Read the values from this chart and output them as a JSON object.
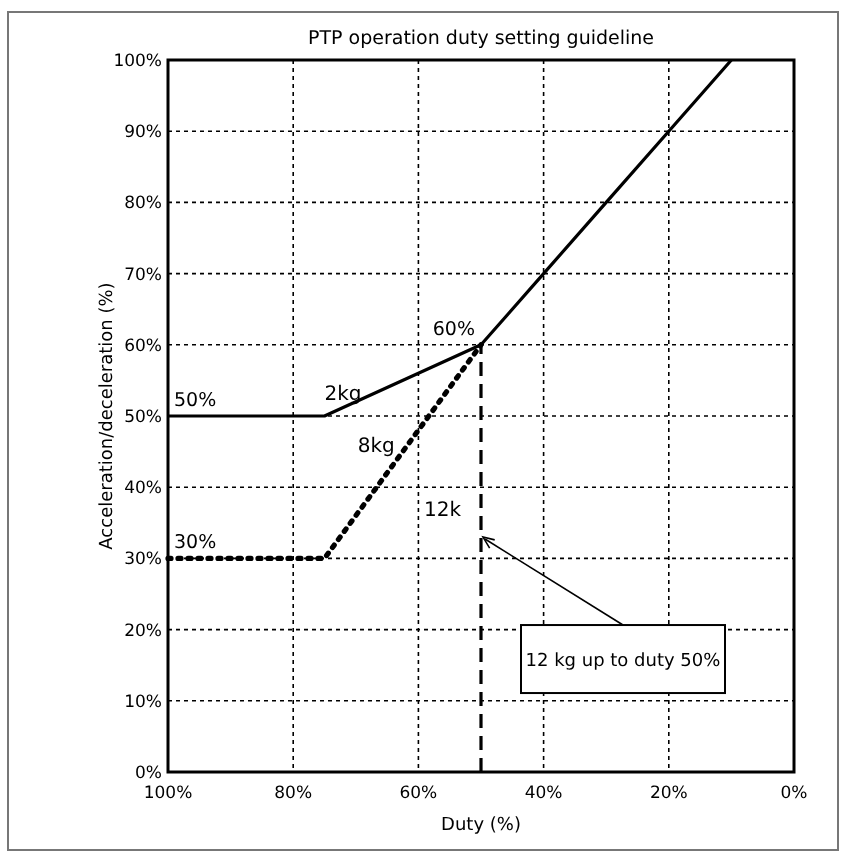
{
  "chart_data": {
    "type": "line",
    "title": "PTP operation duty setting guideline",
    "xlabel": "Duty (%)",
    "ylabel": "Acceleration/deceleration (%)",
    "xlim": [
      100,
      0
    ],
    "ylim": [
      0,
      100
    ],
    "xticks": [
      {
        "value": 100,
        "label": "100%"
      },
      {
        "value": 80,
        "label": "80%"
      },
      {
        "value": 60,
        "label": "60%"
      },
      {
        "value": 40,
        "label": "40%"
      },
      {
        "value": 20,
        "label": "20%"
      },
      {
        "value": 0,
        "label": "0%"
      }
    ],
    "yticks": [
      {
        "value": 0,
        "label": "0%"
      },
      {
        "value": 10,
        "label": "10%"
      },
      {
        "value": 20,
        "label": "20%"
      },
      {
        "value": 30,
        "label": "30%"
      },
      {
        "value": 40,
        "label": "40%"
      },
      {
        "value": 50,
        "label": "50%"
      },
      {
        "value": 60,
        "label": "60%"
      },
      {
        "value": 70,
        "label": "70%"
      },
      {
        "value": 80,
        "label": "80%"
      },
      {
        "value": 90,
        "label": "90%"
      },
      {
        "value": 100,
        "label": "100%"
      }
    ],
    "grid": true,
    "marker": "none",
    "series": [
      {
        "name": "2kg",
        "color": "#000000",
        "line_style": "solid",
        "x": [
          100,
          75,
          50,
          40,
          30,
          20,
          10
        ],
        "values": [
          50,
          50,
          60,
          70,
          80,
          90,
          100
        ]
      },
      {
        "name": "8kg",
        "color": "#000000",
        "line_style": "dotted",
        "x": [
          100,
          75,
          50
        ],
        "values": [
          30,
          30,
          60
        ]
      },
      {
        "name": "12k",
        "color": "#000000",
        "line_style": "dashed",
        "x": [
          50,
          50
        ],
        "values": [
          0,
          60
        ]
      }
    ],
    "annotations": [
      "50%",
      "30%",
      "60%",
      "12 kg up to duty 50%"
    ]
  }
}
